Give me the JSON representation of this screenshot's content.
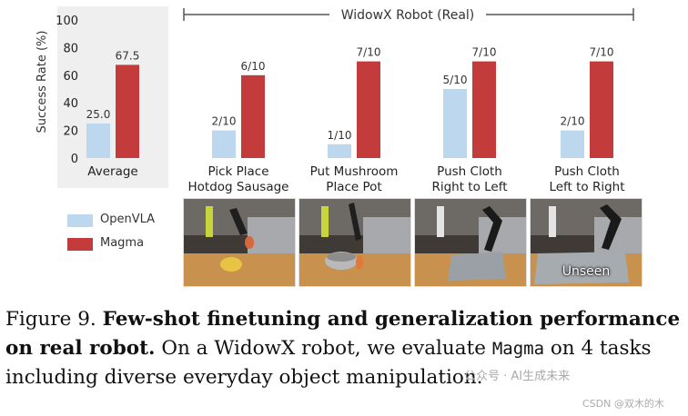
{
  "chart_data": {
    "type": "bar",
    "header": "WidowX Robot (Real)",
    "ylabel": "Success Rate (%)",
    "ylim": [
      0,
      100
    ],
    "yticks": [
      0,
      20,
      40,
      60,
      80,
      100
    ],
    "series_names": [
      "OpenVLA",
      "Magma"
    ],
    "colors": {
      "OpenVLA": "#bcd7ee",
      "Magma": "#c43b3b"
    },
    "average": {
      "category": "Average",
      "values": [
        25.0,
        67.5
      ],
      "labels": [
        "25.0",
        "67.5"
      ]
    },
    "tasks": [
      {
        "category": "Pick Place\nHotdog Sausage",
        "values": [
          20,
          60
        ],
        "labels": [
          "2/10",
          "6/10"
        ],
        "photo_label": ""
      },
      {
        "category": "Put Mushroom\nPlace Pot",
        "values": [
          10,
          70
        ],
        "labels": [
          "1/10",
          "7/10"
        ],
        "photo_label": ""
      },
      {
        "category": "Push Cloth\nRight to Left",
        "values": [
          50,
          70
        ],
        "labels": [
          "5/10",
          "7/10"
        ],
        "photo_label": ""
      },
      {
        "category": "Push Cloth\nLeft to Right",
        "values": [
          20,
          70
        ],
        "labels": [
          "2/10",
          "7/10"
        ],
        "photo_label": "Unseen"
      }
    ]
  },
  "legend": {
    "openvla": "OpenVLA",
    "magma": "Magma"
  },
  "caption": {
    "figure": "Figure 9.",
    "bold": "Few-shot finetuning and generalization performance on real robot.",
    "text_a": "On a WidowX robot, we evaluate",
    "mono": "Magma",
    "text_b": "on 4 tasks including diverse everyday object manipulation."
  },
  "watermark": {
    "line1": "公众号 · AI生成未来",
    "line2": "CSDN @双木的木"
  }
}
